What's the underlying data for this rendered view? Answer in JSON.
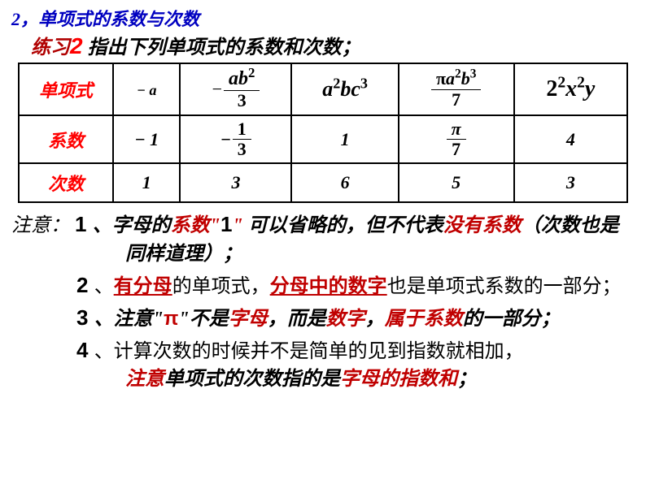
{
  "title_section": {
    "number": "2，",
    "text": "单项式的系数与次数"
  },
  "exercise": {
    "prefix": "练习",
    "number": "2",
    "text": " 指出下列单项式的系数和次数；"
  },
  "table": {
    "row_headers": [
      "单项式",
      "系数",
      "次数"
    ],
    "columns": [
      {
        "mono": {
          "type": "plain",
          "display": "− a",
          "fontSize": "18px"
        },
        "coef": {
          "type": "plain",
          "display": "− 1"
        },
        "deg": {
          "type": "plain",
          "display": "1"
        }
      },
      {
        "mono": {
          "type": "frac",
          "neg": "−",
          "num_html": "<span class='math-italic'>ab</span><sup>2</sup>",
          "num_fontSize": "24px",
          "den": "3"
        },
        "coef": {
          "type": "frac",
          "neg": "−",
          "num": "1",
          "den": "3"
        },
        "deg": {
          "type": "plain",
          "display": "3"
        }
      },
      {
        "mono": {
          "type": "html",
          "html": "<span class='math-italic'>a</span><sup>2</sup><span class='math-italic'>bc</span><sup>3</sup>",
          "fontSize": "26px"
        },
        "coef": {
          "type": "plain",
          "display": "1"
        },
        "deg": {
          "type": "plain",
          "display": "6"
        }
      },
      {
        "mono": {
          "type": "frac",
          "num_html": "π<span class='math-italic'>a</span><sup>2</sup><span class='math-italic'>b</span><sup>3</sup>",
          "num_fontSize": "22px",
          "den": "7"
        },
        "coef": {
          "type": "frac",
          "num_html": "<span class='math-italic'>π</span>",
          "den": "7"
        },
        "deg": {
          "type": "plain",
          "display": "5"
        }
      },
      {
        "mono": {
          "type": "html",
          "html": "2<sup>2</sup><span class='math-italic'>x</span><sup>2</sup><span class='math-italic'>y</span>",
          "fontSize": "28px"
        },
        "coef": {
          "type": "plain",
          "display": "4"
        },
        "deg": {
          "type": "plain",
          "display": "3"
        }
      }
    ]
  },
  "notes_label": "注意：",
  "notes": [
    {
      "num": "1",
      "segments": [
        {
          "t": "、字母的",
          "cls": "kai-italic"
        },
        {
          "t": "系数\"",
          "cls": "kai-italic red"
        },
        {
          "t": "1",
          "cls": "num-marker black"
        },
        {
          "t": "\" ",
          "cls": "kai-italic red"
        },
        {
          "t": "可以省略的，但不代表",
          "cls": "kai-italic"
        },
        {
          "t": "没有系数",
          "cls": "kai-italic red"
        },
        {
          "t": "（次数也是同样道理）；",
          "cls": "kai-italic"
        }
      ]
    },
    {
      "num": "2",
      "segments": [
        {
          "t": "、",
          "cls": "songti"
        },
        {
          "t": "有分母",
          "cls": "songti red underline"
        },
        {
          "t": "的单项式，",
          "cls": "songti"
        },
        {
          "t": "分母中的数字",
          "cls": "songti red underline"
        },
        {
          "t": "也是单项式系数的一部分；",
          "cls": "songti"
        }
      ]
    },
    {
      "num": "3",
      "segments": [
        {
          "t": "、注意\"",
          "cls": "kai-italic"
        },
        {
          "t": "π",
          "cls": "pi-bold"
        },
        {
          "t": "\"不是",
          "cls": "kai-italic"
        },
        {
          "t": "字母",
          "cls": "kai-italic red"
        },
        {
          "t": "，而是",
          "cls": "kai-italic"
        },
        {
          "t": "数字",
          "cls": "kai-italic red"
        },
        {
          "t": "，",
          "cls": "kai-italic"
        },
        {
          "t": "属于系数",
          "cls": "kai-italic red"
        },
        {
          "t": "的一部分；",
          "cls": "kai-italic"
        }
      ]
    },
    {
      "num": "4",
      "segments": [
        {
          "t": "、计算次数的时候并不是简单的见到指数就相加，",
          "cls": "songti"
        },
        {
          "br": true
        },
        {
          "t": "注意",
          "cls": "kai-italic red"
        },
        {
          "t": "单项式的次数指的是",
          "cls": "kai-italic"
        },
        {
          "t": "字母的指数和",
          "cls": "kai-italic red"
        },
        {
          "t": "；",
          "cls": "kai-italic"
        }
      ]
    }
  ]
}
